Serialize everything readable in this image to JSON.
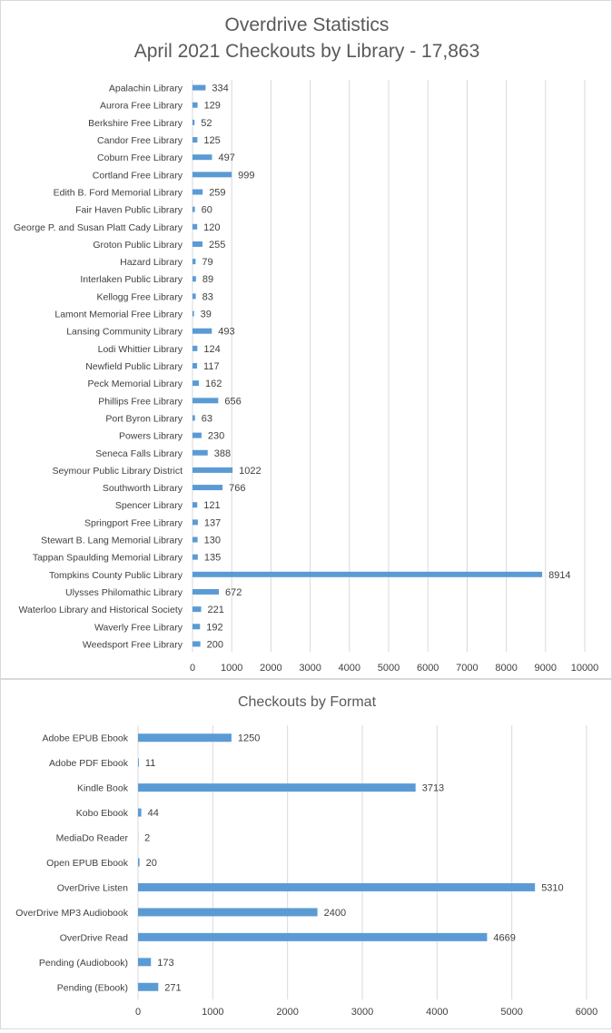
{
  "charts": [
    {
      "type": "bar",
      "orientation": "horizontal",
      "title_line1": "Overdrive Statistics",
      "title_line2": "April 2021 Checkouts by Library - 17,863",
      "categories": [
        "Apalachin Library",
        "Aurora Free Library",
        "Berkshire Free Library",
        "Candor Free Library",
        "Coburn Free Library",
        "Cortland Free Library",
        "Edith B. Ford Memorial Library",
        "Fair Haven Public Library",
        "George P. and Susan Platt Cady Library",
        "Groton Public Library",
        "Hazard Library",
        "Interlaken Public Library",
        "Kellogg Free Library",
        "Lamont Memorial Free Library",
        "Lansing Community Library",
        "Lodi Whittier Library",
        "Newfield Public Library",
        "Peck Memorial Library",
        "Phillips Free Library",
        "Port Byron Library",
        "Powers Library",
        "Seneca Falls Library",
        "Seymour Public Library District",
        "Southworth Library",
        "Spencer Library",
        "Springport Free Library",
        "Stewart B. Lang Memorial Library",
        "Tappan Spaulding Memorial Library",
        "Tompkins County Public Library",
        "Ulysses Philomathic Library",
        "Waterloo Library and Historical Society",
        "Waverly Free Library",
        "Weedsport Free Library"
      ],
      "values": [
        334,
        129,
        52,
        125,
        497,
        999,
        259,
        60,
        120,
        255,
        79,
        89,
        83,
        39,
        493,
        124,
        117,
        162,
        656,
        63,
        230,
        388,
        1022,
        766,
        121,
        137,
        130,
        135,
        8914,
        672,
        221,
        192,
        200
      ],
      "xlim": [
        0,
        10000
      ],
      "xticks": [
        0,
        1000,
        2000,
        3000,
        4000,
        5000,
        6000,
        7000,
        8000,
        9000,
        10000
      ],
      "grid": "vertical",
      "bar_color": "#5b9bd5",
      "data_labels": true
    },
    {
      "type": "bar",
      "orientation": "horizontal",
      "title": "Checkouts by Format",
      "categories": [
        "Adobe EPUB Ebook",
        "Adobe PDF Ebook",
        "Kindle Book",
        "Kobo Ebook",
        "MediaDo Reader",
        "Open EPUB Ebook",
        "OverDrive Listen",
        "OverDrive MP3 Audiobook",
        "OverDrive Read",
        "Pending (Audiobook)",
        "Pending (Ebook)"
      ],
      "values": [
        1250,
        11,
        3713,
        44,
        2,
        20,
        5310,
        2400,
        4669,
        173,
        271
      ],
      "xlim": [
        0,
        6000
      ],
      "xticks": [
        0,
        1000,
        2000,
        3000,
        4000,
        5000,
        6000
      ],
      "grid": "vertical",
      "bar_color": "#5b9bd5",
      "data_labels": true
    }
  ],
  "colors": {
    "bar": "#5b9bd5",
    "grid": "#d9d9d9",
    "text": "#404040",
    "title": "#595959"
  }
}
